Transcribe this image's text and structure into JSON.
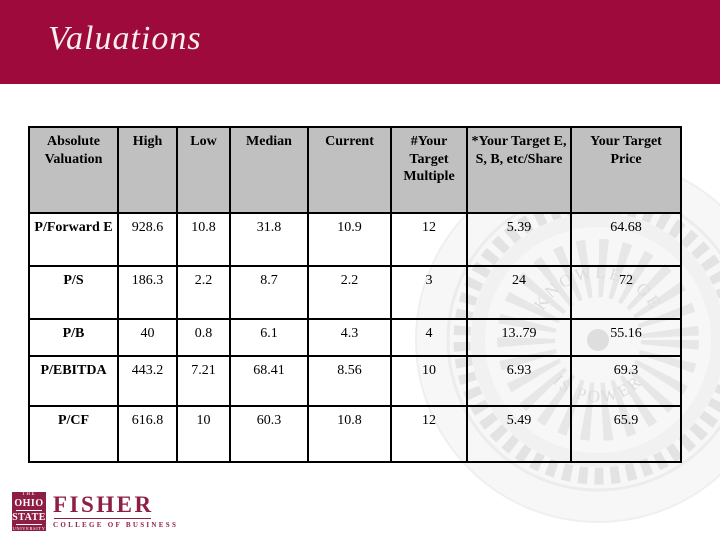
{
  "slide_title": "Valuations",
  "colors": {
    "band": "#9f0a3c",
    "table_header_bg": "#c0c0c0",
    "logo_maroon": "#8e1f44",
    "title_text": "#f5f0ec"
  },
  "table": {
    "columns": [
      "Absolute Valuation",
      "High",
      "Low",
      "Median",
      "Current",
      "#Your Target Multiple",
      "*Your Target E, S, B, etc/Share",
      "Your Target Price"
    ],
    "rows": [
      {
        "label": "P/Forward E",
        "values": [
          "928.6",
          "10.8",
          "31.8",
          "10.9",
          "12",
          "5.39",
          "64.68"
        ]
      },
      {
        "label": "P/S",
        "values": [
          "186.3",
          "2.2",
          "8.7",
          "2.2",
          "3",
          "24",
          "72"
        ]
      },
      {
        "label": "P/B",
        "values": [
          "40",
          "0.8",
          "6.1",
          "4.3",
          "4",
          "13..79",
          "55.16"
        ]
      },
      {
        "label": "P/EBITDA",
        "values": [
          "443.2",
          "7.21",
          "68.41",
          "8.56",
          "10",
          "6.93",
          "69.3"
        ]
      },
      {
        "label": "P/CF",
        "values": [
          "616.8",
          "10",
          "60.3",
          "10.8",
          "12",
          "5.49",
          "65.9"
        ]
      }
    ]
  },
  "watermark": {
    "arc_top": "KNOWLEDGE",
    "arc_bottom": "IS POWER"
  },
  "footer_logo": {
    "the": "THE",
    "ohio": "OHIO",
    "state": "STATE",
    "university": "UNIVERSITY",
    "fisher": "FISHER",
    "college": "COLLEGE OF BUSINESS"
  }
}
